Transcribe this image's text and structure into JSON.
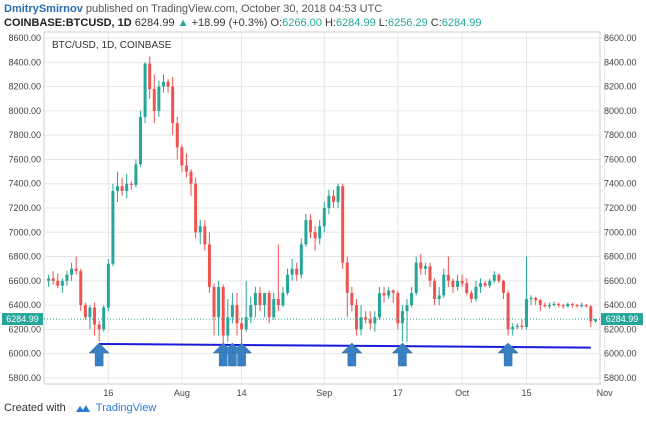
{
  "header": {
    "author": "DmitrySmirnov",
    "published_text": "published on TradingView.com, October 30, 2018 04:53 UTC",
    "symbol": "COINBASE:BTCUSD, 1D",
    "last": "6284.99",
    "change": "+18.99 (+0.3%)",
    "o_label": "O:",
    "o_value": "6266.00",
    "h_label": "H:",
    "h_value": "6284.99",
    "l_label": "L:",
    "l_value": "6256.29",
    "c_label": "C:",
    "c_value": "6284.99"
  },
  "footer": {
    "created_with": "Created with",
    "brand": "TradingView"
  },
  "colors": {
    "up": "#26a69a",
    "down": "#ef5350",
    "support": "#1a1adb",
    "arrow": "#3a7fc1",
    "grid": "#e6e6e6"
  },
  "chart_data": {
    "type": "candlestick",
    "title": "BTC/USD, 1D, COINBASE",
    "ylim": [
      5750,
      8650
    ],
    "yticks": [
      5800,
      6000,
      6200,
      6400,
      6600,
      6800,
      7000,
      7200,
      7400,
      7600,
      7800,
      8000,
      8200,
      8400,
      8600
    ],
    "ytick_labels": [
      "5800.00",
      "6000.00",
      "6200.00",
      "6400.00",
      "6600.00",
      "6800.00",
      "7000.00",
      "7200.00",
      "7400.00",
      "7600.00",
      "7800.00",
      "8000.00",
      "8200.00",
      "8400.00",
      "8600.00"
    ],
    "xlim": [
      "2018-07-02",
      "2018-10-31"
    ],
    "xticks": [
      "2018-07-16",
      "2018-08-01",
      "2018-08-14",
      "2018-09-01",
      "2018-09-17",
      "2018-10-01",
      "2018-10-15",
      "2018-11-01"
    ],
    "xtick_labels": [
      "16",
      "Aug",
      "14",
      "Sep",
      "17",
      "Oct",
      "15",
      "Nov"
    ],
    "last_price": 6284.99,
    "last_price_label": "6284.99",
    "support_line": [
      [
        "2018-07-14",
        6080
      ],
      [
        "2018-10-29",
        6050
      ]
    ],
    "arrows": [
      "2018-07-14",
      "2018-08-10",
      "2018-08-12",
      "2018-08-14",
      "2018-09-07",
      "2018-09-18",
      "2018-10-11"
    ],
    "candles": [
      [
        "2018-07-03",
        6600,
        6650,
        6550,
        6620
      ],
      [
        "2018-07-04",
        6620,
        6680,
        6570,
        6600
      ],
      [
        "2018-07-05",
        6600,
        6660,
        6540,
        6560
      ],
      [
        "2018-07-06",
        6560,
        6620,
        6500,
        6600
      ],
      [
        "2018-07-07",
        6600,
        6680,
        6560,
        6650
      ],
      [
        "2018-07-08",
        6650,
        6750,
        6600,
        6700
      ],
      [
        "2018-07-09",
        6700,
        6800,
        6650,
        6680
      ],
      [
        "2018-07-10",
        6680,
        6700,
        6350,
        6400
      ],
      [
        "2018-07-11",
        6400,
        6420,
        6280,
        6300
      ],
      [
        "2018-07-12",
        6300,
        6400,
        6200,
        6380
      ],
      [
        "2018-07-13",
        6380,
        6420,
        6150,
        6240
      ],
      [
        "2018-07-14",
        6240,
        6270,
        6100,
        6200
      ],
      [
        "2018-07-15",
        6200,
        6400,
        6180,
        6380
      ],
      [
        "2018-07-16",
        6380,
        6780,
        6350,
        6740
      ],
      [
        "2018-07-17",
        6740,
        7400,
        6720,
        7340
      ],
      [
        "2018-07-18",
        7340,
        7500,
        7250,
        7380
      ],
      [
        "2018-07-19",
        7380,
        7450,
        7300,
        7340
      ],
      [
        "2018-07-20",
        7340,
        7480,
        7280,
        7400
      ],
      [
        "2018-07-21",
        7400,
        7420,
        7350,
        7390
      ],
      [
        "2018-07-22",
        7390,
        7600,
        7370,
        7560
      ],
      [
        "2018-07-23",
        7560,
        8000,
        7540,
        7950
      ],
      [
        "2018-07-24",
        7950,
        8400,
        7900,
        8390
      ],
      [
        "2018-07-25",
        8390,
        8450,
        8100,
        8180
      ],
      [
        "2018-07-26",
        8180,
        8300,
        7900,
        8000
      ],
      [
        "2018-07-27",
        8000,
        8250,
        7950,
        8200
      ],
      [
        "2018-07-28",
        8200,
        8300,
        8150,
        8240
      ],
      [
        "2018-07-29",
        8240,
        8260,
        8150,
        8200
      ],
      [
        "2018-07-30",
        8200,
        8280,
        7800,
        7900
      ],
      [
        "2018-07-31",
        7900,
        7950,
        7600,
        7700
      ],
      [
        "2018-08-01",
        7700,
        7720,
        7500,
        7550
      ],
      [
        "2018-08-02",
        7550,
        7650,
        7450,
        7500
      ],
      [
        "2018-08-03",
        7500,
        7520,
        7300,
        7400
      ],
      [
        "2018-08-04",
        7400,
        7450,
        6950,
        7000
      ],
      [
        "2018-08-05",
        7000,
        7100,
        6900,
        7050
      ],
      [
        "2018-08-06",
        7050,
        7100,
        6850,
        6900
      ],
      [
        "2018-08-07",
        6900,
        7000,
        6500,
        6550
      ],
      [
        "2018-08-08",
        6550,
        6580,
        6150,
        6300
      ],
      [
        "2018-08-09",
        6300,
        6600,
        6150,
        6550
      ],
      [
        "2018-08-10",
        6550,
        6570,
        6080,
        6150
      ],
      [
        "2018-08-11",
        6150,
        6450,
        6100,
        6300
      ],
      [
        "2018-08-12",
        6300,
        6500,
        6250,
        6400
      ],
      [
        "2018-08-13",
        6400,
        6500,
        6150,
        6250
      ],
      [
        "2018-08-14",
        6250,
        6300,
        5900,
        6200
      ],
      [
        "2018-08-15",
        6200,
        6600,
        6180,
        6300
      ],
      [
        "2018-08-16",
        6300,
        6470,
        6250,
        6400
      ],
      [
        "2018-08-17",
        6400,
        6550,
        6300,
        6500
      ],
      [
        "2018-08-18",
        6500,
        6550,
        6350,
        6400
      ],
      [
        "2018-08-19",
        6400,
        6500,
        6300,
        6500
      ],
      [
        "2018-08-20",
        6500,
        6520,
        6250,
        6300
      ],
      [
        "2018-08-21",
        6300,
        6500,
        6280,
        6450
      ],
      [
        "2018-08-22",
        6450,
        6900,
        6350,
        6400
      ],
      [
        "2018-08-23",
        6400,
        6550,
        6380,
        6500
      ],
      [
        "2018-08-24",
        6500,
        6700,
        6480,
        6650
      ],
      [
        "2018-08-25",
        6650,
        6780,
        6600,
        6700
      ],
      [
        "2018-08-26",
        6700,
        6750,
        6600,
        6650
      ],
      [
        "2018-08-27",
        6650,
        6950,
        6620,
        6900
      ],
      [
        "2018-08-28",
        6900,
        7150,
        6880,
        7100
      ],
      [
        "2018-08-29",
        7100,
        7150,
        6950,
        7000
      ],
      [
        "2018-08-30",
        7000,
        7050,
        6850,
        6950
      ],
      [
        "2018-08-31",
        6950,
        7100,
        6900,
        7050
      ],
      [
        "2018-09-01",
        7050,
        7250,
        7000,
        7200
      ],
      [
        "2018-09-02",
        7200,
        7350,
        7150,
        7300
      ],
      [
        "2018-09-03",
        7300,
        7350,
        7200,
        7250
      ],
      [
        "2018-09-04",
        7250,
        7400,
        7200,
        7380
      ],
      [
        "2018-09-05",
        7380,
        7400,
        6700,
        6750
      ],
      [
        "2018-09-06",
        6750,
        6800,
        6300,
        6500
      ],
      [
        "2018-09-07",
        6500,
        6550,
        6350,
        6400
      ],
      [
        "2018-09-08",
        6400,
        6450,
        6150,
        6200
      ],
      [
        "2018-09-09",
        6200,
        6400,
        6150,
        6300
      ],
      [
        "2018-09-10",
        6300,
        6350,
        6250,
        6280
      ],
      [
        "2018-09-11",
        6280,
        6350,
        6200,
        6250
      ],
      [
        "2018-09-12",
        6250,
        6350,
        6180,
        6300
      ],
      [
        "2018-09-13",
        6300,
        6550,
        6280,
        6500
      ],
      [
        "2018-09-14",
        6500,
        6550,
        6420,
        6480
      ],
      [
        "2018-09-15",
        6480,
        6550,
        6450,
        6520
      ],
      [
        "2018-09-16",
        6520,
        6530,
        6420,
        6500
      ],
      [
        "2018-09-17",
        6500,
        6520,
        6200,
        6250
      ],
      [
        "2018-09-18",
        6250,
        6400,
        6100,
        6350
      ],
      [
        "2018-09-19",
        6350,
        6450,
        6100,
        6400
      ],
      [
        "2018-09-20",
        6400,
        6550,
        6380,
        6500
      ],
      [
        "2018-09-21",
        6500,
        6800,
        6480,
        6750
      ],
      [
        "2018-09-22",
        6750,
        6820,
        6650,
        6700
      ],
      [
        "2018-09-23",
        6700,
        6750,
        6650,
        6720
      ],
      [
        "2018-09-24",
        6720,
        6750,
        6550,
        6600
      ],
      [
        "2018-09-25",
        6600,
        6620,
        6400,
        6450
      ],
      [
        "2018-09-26",
        6450,
        6550,
        6400,
        6480
      ],
      [
        "2018-09-27",
        6480,
        6700,
        6460,
        6650
      ],
      [
        "2018-09-28",
        6650,
        6800,
        6550,
        6600
      ],
      [
        "2018-09-29",
        6600,
        6620,
        6500,
        6550
      ],
      [
        "2018-09-30",
        6550,
        6650,
        6520,
        6600
      ],
      [
        "2018-10-01",
        6600,
        6650,
        6550,
        6580
      ],
      [
        "2018-10-02",
        6580,
        6620,
        6480,
        6500
      ],
      [
        "2018-10-03",
        6500,
        6520,
        6420,
        6450
      ],
      [
        "2018-10-04",
        6450,
        6600,
        6430,
        6550
      ],
      [
        "2018-10-05",
        6550,
        6620,
        6500,
        6580
      ],
      [
        "2018-10-06",
        6580,
        6600,
        6550,
        6560
      ],
      [
        "2018-10-07",
        6560,
        6620,
        6540,
        6600
      ],
      [
        "2018-10-08",
        6600,
        6680,
        6580,
        6650
      ],
      [
        "2018-10-09",
        6650,
        6660,
        6580,
        6600
      ],
      [
        "2018-10-10",
        6600,
        6610,
        6450,
        6500
      ],
      [
        "2018-10-11",
        6500,
        6520,
        6150,
        6200
      ],
      [
        "2018-10-12",
        6200,
        6250,
        6150,
        6220
      ],
      [
        "2018-10-13",
        6220,
        6250,
        6200,
        6230
      ],
      [
        "2018-10-14",
        6230,
        6280,
        6200,
        6220
      ],
      [
        "2018-10-15",
        6220,
        6800,
        6200,
        6450
      ],
      [
        "2018-10-16",
        6450,
        6480,
        6400,
        6460
      ],
      [
        "2018-10-17",
        6460,
        6470,
        6400,
        6440
      ],
      [
        "2018-10-18",
        6440,
        6450,
        6350,
        6400
      ],
      [
        "2018-10-19",
        6400,
        6420,
        6380,
        6390
      ],
      [
        "2018-10-20",
        6390,
        6420,
        6370,
        6400
      ],
      [
        "2018-10-21",
        6400,
        6430,
        6390,
        6410
      ],
      [
        "2018-10-22",
        6410,
        6420,
        6380,
        6400
      ],
      [
        "2018-10-23",
        6400,
        6410,
        6370,
        6390
      ],
      [
        "2018-10-24",
        6390,
        6420,
        6380,
        6410
      ],
      [
        "2018-10-25",
        6410,
        6420,
        6380,
        6400
      ],
      [
        "2018-10-26",
        6400,
        6410,
        6380,
        6390
      ],
      [
        "2018-10-27",
        6390,
        6420,
        6380,
        6400
      ],
      [
        "2018-10-28",
        6400,
        6410,
        6380,
        6390
      ],
      [
        "2018-10-29",
        6390,
        6400,
        6220,
        6266
      ],
      [
        "2018-10-30",
        6266,
        6285,
        6256,
        6284.99
      ]
    ]
  }
}
